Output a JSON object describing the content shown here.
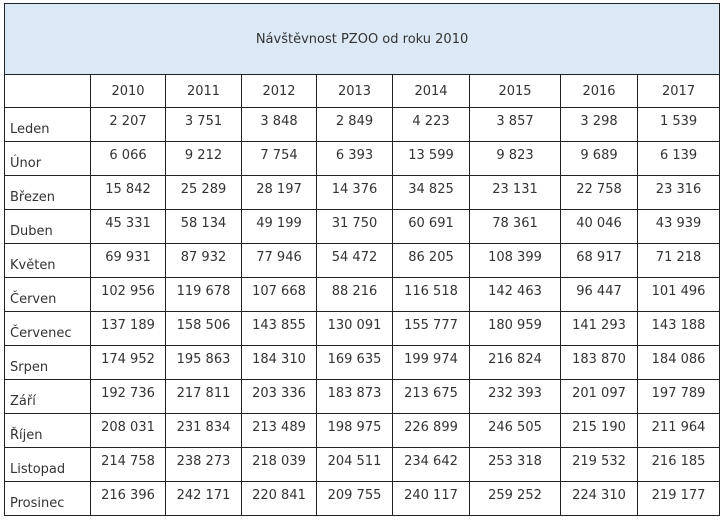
{
  "title": "Návštěvnost PZOO od roku 2010",
  "years": [
    "2010",
    "2011",
    "2012",
    "2013",
    "2014",
    "2015",
    "2016",
    "2017"
  ],
  "rows": [
    {
      "month": "Leden",
      "values": [
        "2 207",
        "3 751",
        "3 848",
        "2 849",
        "4 223",
        "3 857",
        "3 298",
        "1 539"
      ]
    },
    {
      "month": "Únor",
      "values": [
        "6 066",
        "9 212",
        "7 754",
        "6 393",
        "13 599",
        "9 823",
        "9 689",
        "6 139"
      ]
    },
    {
      "month": "Březen",
      "values": [
        "15 842",
        "25 289",
        "28 197",
        "14 376",
        "34 825",
        "23 131",
        "22 758",
        "23 316"
      ]
    },
    {
      "month": "Duben",
      "values": [
        "45 331",
        "58 134",
        "49 199",
        "31 750",
        "60 691",
        "78 361",
        "40 046",
        "43 939"
      ]
    },
    {
      "month": "Květen",
      "values": [
        "69 931",
        "87 932",
        "77 946",
        "54 472",
        "86 205",
        "108 399",
        "68 917",
        "71 218"
      ]
    },
    {
      "month": "Červen",
      "values": [
        "102 956",
        "119 678",
        "107 668",
        "88 216",
        "116 518",
        "142 463",
        "96 447",
        "101 496"
      ]
    },
    {
      "month": "Červenec",
      "values": [
        "137 189",
        "158 506",
        "143 855",
        "130 091",
        "155 777",
        "180 959",
        "141 293",
        "143 188"
      ]
    },
    {
      "month": "Srpen",
      "values": [
        "174 952",
        "195 863",
        "184 310",
        "169 635",
        "199 974",
        "216 824",
        "183 870",
        "184 086"
      ]
    },
    {
      "month": "Září",
      "values": [
        "192 736",
        "217 811",
        "203 336",
        "183 873",
        "213 675",
        "232 393",
        "201 097",
        "197 789"
      ]
    },
    {
      "month": "Říjen",
      "values": [
        "208 031",
        "231 834",
        "213 489",
        "198 975",
        "226 899",
        "246 505",
        "215 190",
        "211 964"
      ]
    },
    {
      "month": "Listopad",
      "values": [
        "214 758",
        "238 273",
        "218 039",
        "204 511",
        "234 642",
        "253 318",
        "219 532",
        "216 185"
      ]
    },
    {
      "month": "Prosinec",
      "values": [
        "216 396",
        "242 171",
        "220 841",
        "209 755",
        "240 117",
        "259 252",
        "224 310",
        "219 177"
      ]
    }
  ]
}
